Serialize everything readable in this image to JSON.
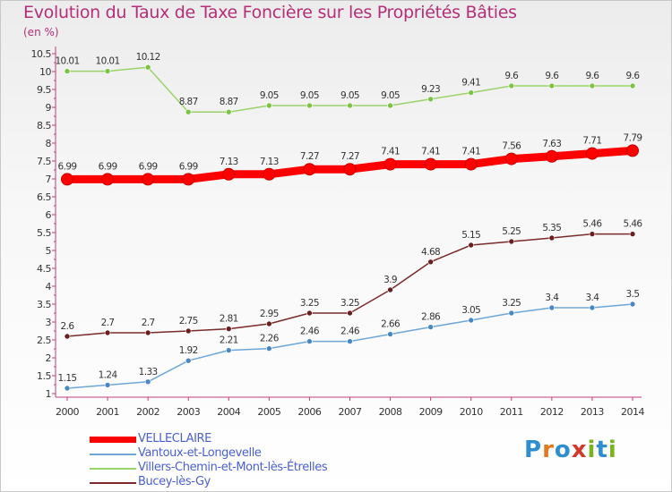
{
  "header": {
    "title": "Evolution du Taux de Taxe Foncière sur les Propriétés Bâties",
    "unit": "(en %)"
  },
  "logo": {
    "text": "Proxiti",
    "colors": [
      "#2e8ecf",
      "#e07a1c",
      "#2e8ecf",
      "#d13a2a",
      "#7ab320",
      "#2e8ecf",
      "#7ab320"
    ]
  },
  "chart_data": {
    "type": "line",
    "title": "Evolution du Taux de Taxe Foncière sur les Propriétés Bâties",
    "ylabel": "(en %)",
    "xlabel": "",
    "x": [
      "2000",
      "2001",
      "2002",
      "2003",
      "2004",
      "2005",
      "2006",
      "2007",
      "2008",
      "2009",
      "2010",
      "2011",
      "2012",
      "2013",
      "2014"
    ],
    "ylim": [
      1,
      10.5
    ],
    "yticks": [
      "1",
      "1.5",
      "2",
      "2.5",
      "3",
      "3.5",
      "4",
      "4.5",
      "5",
      "5.5",
      "6",
      "6.5",
      "7",
      "7.5",
      "8",
      "8.5",
      "9",
      "9.5",
      "10",
      "10.5"
    ],
    "grid": false,
    "legend_position": "bottom-left",
    "series": [
      {
        "name": "VELLECLAIRE",
        "color": "#ff0000",
        "marker": "#d01010",
        "emphasis": true,
        "values": [
          6.99,
          6.99,
          6.99,
          6.99,
          7.13,
          7.13,
          7.27,
          7.27,
          7.41,
          7.41,
          7.41,
          7.56,
          7.63,
          7.71,
          7.79
        ],
        "labels": [
          "6.99",
          "6.99",
          "6.99",
          "6.99",
          "7.13",
          "7.13",
          "7.27",
          "7.27",
          "7.41",
          "7.41",
          "7.41",
          "7.56",
          "7.63",
          "7.71",
          "7.79"
        ]
      },
      {
        "name": "Vantoux-et-Longevelle",
        "color": "#6ea6d8",
        "marker": "#4a88c4",
        "emphasis": false,
        "values": [
          1.15,
          1.24,
          1.33,
          1.92,
          2.21,
          2.26,
          2.46,
          2.46,
          2.66,
          2.86,
          3.05,
          3.25,
          3.4,
          3.4,
          3.5
        ],
        "labels": [
          "1.15",
          "1.24",
          "1.33",
          "1.92",
          "2.21",
          "2.26",
          "2.46",
          "2.46",
          "2.66",
          "2.86",
          "3.05",
          "3.25",
          "3.4",
          "3.4",
          "3.5"
        ]
      },
      {
        "name": "Villers-Chemin-et-Mont-lès-Étrelles",
        "color": "#9ad36a",
        "marker": "#7cc243",
        "emphasis": false,
        "values": [
          10.01,
          10.01,
          10.12,
          8.87,
          8.87,
          9.05,
          9.05,
          9.05,
          9.05,
          9.23,
          9.41,
          9.6,
          9.6,
          9.6,
          9.6
        ],
        "labels": [
          "10.01",
          "10.01",
          "10.12",
          "8.87",
          "8.87",
          "9.05",
          "9.05",
          "9.05",
          "9.05",
          "9.23",
          "9.41",
          "9.6",
          "9.6",
          "9.6",
          "9.6"
        ]
      },
      {
        "name": "Bucey-lès-Gy",
        "color": "#7a2a2a",
        "marker": "#6a1e1e",
        "emphasis": false,
        "values": [
          2.6,
          2.7,
          2.7,
          2.75,
          2.81,
          2.95,
          3.25,
          3.25,
          3.9,
          4.68,
          5.15,
          5.25,
          5.35,
          5.46,
          5.46
        ],
        "labels": [
          "2.6",
          "2.7",
          "2.7",
          "2.75",
          "2.81",
          "2.95",
          "3.25",
          "3.25",
          "3.9",
          "4.68",
          "5.15",
          "5.25",
          "5.35",
          "5.46",
          "5.46"
        ]
      }
    ]
  }
}
